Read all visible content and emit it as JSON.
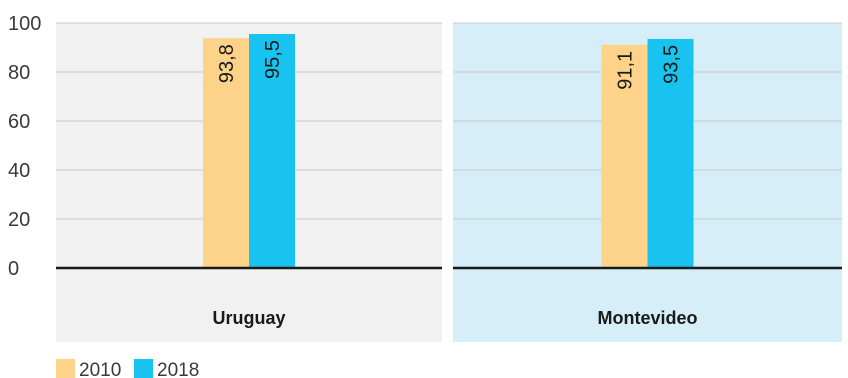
{
  "chart_data": {
    "type": "bar",
    "title": "",
    "xlabel": "",
    "ylabel": "",
    "ylim": [
      0,
      100
    ],
    "yticks": [
      0,
      20,
      40,
      60,
      80,
      100
    ],
    "grid": true,
    "legend_position": "bottom-left",
    "categories": [
      "Uruguay",
      "Montevideo"
    ],
    "panel_colors": [
      "#f1f1f1",
      "#d6eef8"
    ],
    "series": [
      {
        "name": "2010",
        "color": "#fdd38a",
        "values": [
          93.8,
          91.1
        ],
        "labels": [
          "93,8",
          "91,1"
        ]
      },
      {
        "name": "2018",
        "color": "#19c3f0",
        "values": [
          95.5,
          93.5
        ],
        "labels": [
          "95,5",
          "93,5"
        ]
      }
    ]
  }
}
